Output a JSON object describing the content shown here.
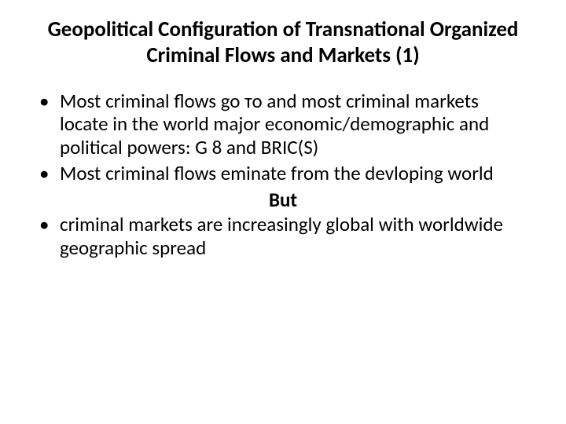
{
  "title": "Geopolitical Configuration of Transnational Organized Criminal Flows and Markets (1)",
  "bullets": {
    "b1": "Most criminal flows  go то and most criminal markets locate in the world major economic/demographic and political powers: G 8 and BRIC(S)",
    "b2": "Most criminal flows eminate from the devloping world",
    "b3": "criminal markets are increasingly global with worldwide geographic spread"
  },
  "center_word": "But",
  "colors": {
    "background": "#ffffff",
    "text": "#000000"
  },
  "fonts": {
    "title_size_pt": 27,
    "body_size_pt": 25,
    "title_weight": 700,
    "body_weight": 400,
    "family": "Calibri"
  }
}
